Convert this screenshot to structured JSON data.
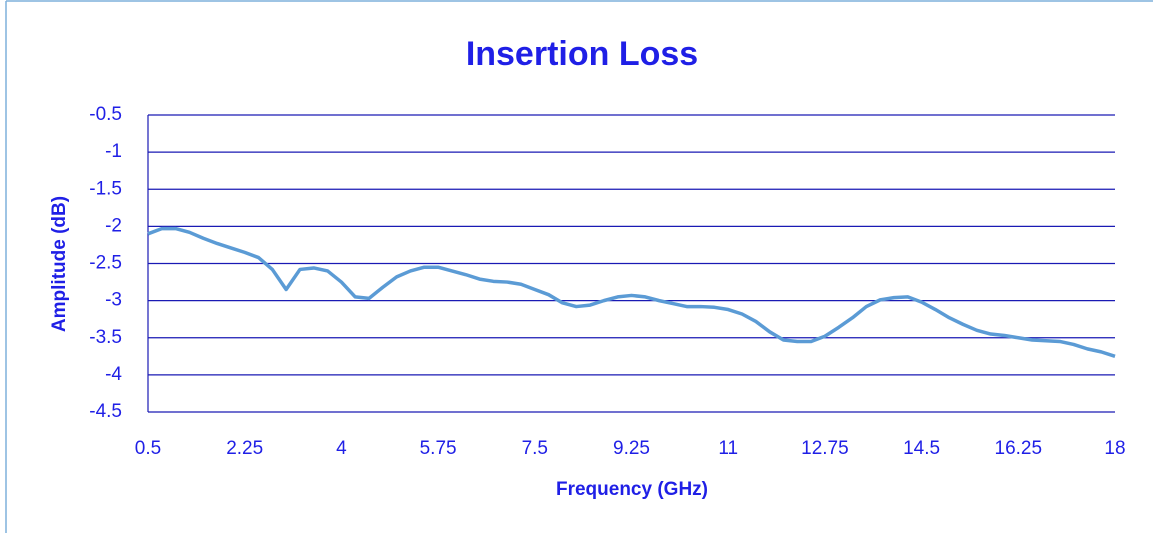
{
  "chart_data": {
    "type": "line",
    "title": "Insertion Loss",
    "x_label": "Frequency (GHz)",
    "y_label": "Amplitude (dB)",
    "x": [
      0.5,
      0.75,
      1,
      1.25,
      1.5,
      1.75,
      2,
      2.25,
      2.5,
      2.75,
      3,
      3.25,
      3.5,
      3.75,
      4,
      4.25,
      4.5,
      4.75,
      5,
      5.25,
      5.5,
      5.75,
      6,
      6.25,
      6.5,
      6.75,
      7,
      7.25,
      7.5,
      7.75,
      8,
      8.25,
      8.5,
      8.75,
      9,
      9.25,
      9.5,
      9.75,
      10,
      10.25,
      10.5,
      10.75,
      11,
      11.25,
      11.5,
      11.75,
      12,
      12.25,
      12.5,
      12.75,
      13,
      13.25,
      13.5,
      13.75,
      14,
      14.25,
      14.5,
      14.75,
      15,
      15.25,
      15.5,
      15.75,
      16,
      16.25,
      16.5,
      16.75,
      17,
      17.25,
      17.5,
      17.75,
      18
    ],
    "series": [
      {
        "name": "Insertion Loss",
        "color": "#5b9bd5",
        "values": [
          -2.1,
          -2.03,
          -2.03,
          -2.08,
          -2.16,
          -2.23,
          -2.29,
          -2.35,
          -2.42,
          -2.58,
          -2.85,
          -2.58,
          -2.56,
          -2.6,
          -2.75,
          -2.95,
          -2.97,
          -2.82,
          -2.68,
          -2.6,
          -2.55,
          -2.55,
          -2.6,
          -2.65,
          -2.71,
          -2.74,
          -2.75,
          -2.78,
          -2.85,
          -2.92,
          -3.03,
          -3.08,
          -3.06,
          -3.0,
          -2.95,
          -2.93,
          -2.95,
          -3.0,
          -3.04,
          -3.08,
          -3.08,
          -3.09,
          -3.12,
          -3.18,
          -3.28,
          -3.42,
          -3.53,
          -3.55,
          -3.55,
          -3.48,
          -3.36,
          -3.23,
          -3.08,
          -2.99,
          -2.96,
          -2.95,
          -3.02,
          -3.12,
          -3.23,
          -3.32,
          -3.4,
          -3.45,
          -3.47,
          -3.5,
          -3.53,
          -3.54,
          -3.55,
          -3.59,
          -3.65,
          -3.69,
          -3.75
        ]
      }
    ],
    "xlim": [
      0.5,
      18
    ],
    "xticks": [
      0.5,
      2.25,
      4,
      5.75,
      7.5,
      9.25,
      11,
      12.75,
      14.5,
      16.25,
      18
    ],
    "ylim": [
      -4.5,
      -0.5
    ],
    "yticks": [
      -0.5,
      -1,
      -1.5,
      -2,
      -2.5,
      -3,
      -3.5,
      -4,
      -4.5
    ],
    "grid": true
  }
}
